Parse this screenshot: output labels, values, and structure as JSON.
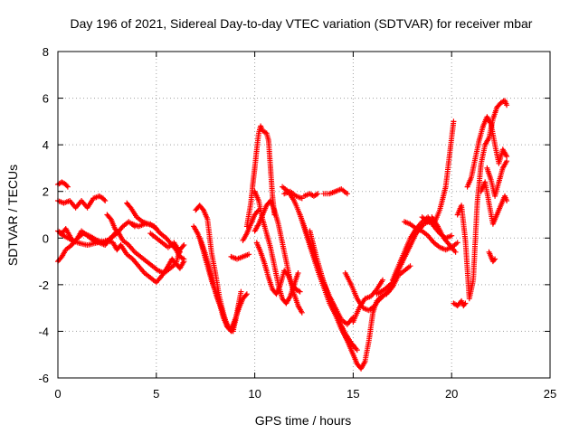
{
  "chart_data": {
    "type": "scatter",
    "title": "Day 196 of 2021, Sidereal Day-to-day VTEC variation (SDTVAR) for receiver mbar",
    "xlabel": "GPS time / hours",
    "ylabel": "SDTVAR / TECUs",
    "xlim": [
      0,
      25
    ],
    "ylim": [
      -6,
      8
    ],
    "xticks": [
      0,
      5,
      10,
      15,
      20,
      25
    ],
    "yticks": [
      -6,
      -4,
      -2,
      0,
      2,
      4,
      6,
      8
    ],
    "grid": true,
    "marker": "+",
    "color": "#ff0000",
    "series": [
      {
        "name": "arc1",
        "x": [
          0.0,
          0.2,
          0.4,
          0.5
        ],
        "y": [
          2.3,
          2.4,
          2.3,
          2.2
        ]
      },
      {
        "name": "arc2",
        "x": [
          0.0,
          0.3,
          0.6,
          0.9,
          1.2,
          1.5,
          1.8,
          2.1,
          2.3,
          2.4
        ],
        "y": [
          1.6,
          1.5,
          1.6,
          1.3,
          1.6,
          1.3,
          1.7,
          1.8,
          1.7,
          1.6
        ]
      },
      {
        "name": "arc3",
        "x": [
          0.0,
          0.2,
          0.4,
          0.7,
          1.0,
          1.3,
          1.6,
          2.0,
          2.4,
          2.8,
          3.0
        ],
        "y": [
          -1.0,
          -0.8,
          -0.5,
          -0.3,
          0.0,
          0.2,
          0.1,
          -0.1,
          -0.2,
          0.1,
          0.3
        ]
      },
      {
        "name": "arc4",
        "x": [
          0.0,
          0.2,
          0.4,
          0.6,
          0.8,
          1.0,
          1.2,
          1.5,
          1.8,
          2.1,
          2.4,
          2.7,
          3.0,
          3.3,
          3.6,
          3.9
        ],
        "y": [
          0.3,
          0.2,
          0.4,
          0.1,
          -0.2,
          0.0,
          0.3,
          0.1,
          -0.1,
          -0.2,
          -0.3,
          0.0,
          0.2,
          0.5,
          0.7,
          0.5
        ]
      },
      {
        "name": "arc5",
        "x": [
          0.1,
          0.5,
          1.0,
          1.5,
          2.0,
          2.5,
          2.8,
          3.0,
          3.2,
          3.5,
          3.8,
          4.1,
          4.4,
          4.7,
          5.0,
          5.3,
          5.6,
          5.8,
          6.0,
          6.2,
          6.4
        ],
        "y": [
          0.2,
          0.0,
          -0.2,
          -0.3,
          -0.2,
          -0.1,
          -0.2,
          -0.5,
          -0.3,
          -0.7,
          -0.9,
          -1.2,
          -1.5,
          -1.7,
          -1.9,
          -1.6,
          -1.2,
          -0.9,
          -1.1,
          -0.5,
          -0.3
        ]
      },
      {
        "name": "arc6",
        "x": [
          2.5,
          2.7,
          2.9,
          3.1,
          3.3,
          3.6,
          3.9,
          4.2,
          4.5,
          4.8,
          5.1,
          5.4,
          5.7,
          6.0,
          6.2,
          6.4
        ],
        "y": [
          1.0,
          0.8,
          0.4,
          0.2,
          -0.1,
          -0.3,
          -0.6,
          -0.8,
          -1.0,
          -1.2,
          -1.4,
          -1.5,
          -1.3,
          -1.1,
          -1.3,
          -1.0
        ]
      },
      {
        "name": "arc7",
        "x": [
          3.5,
          3.7,
          4.0,
          4.3,
          4.6,
          4.9,
          5.2,
          5.5,
          5.8,
          6.0,
          6.2,
          6.4
        ],
        "y": [
          1.5,
          1.3,
          0.9,
          0.7,
          0.6,
          0.5,
          0.2,
          0.0,
          -0.3,
          -0.5,
          -0.8,
          -0.9
        ]
      },
      {
        "name": "arc8",
        "x": [
          3.8,
          4.1,
          4.4,
          4.7,
          5.0
        ],
        "y": [
          0.6,
          0.5,
          0.6,
          0.6,
          0.4
        ]
      },
      {
        "name": "arc9",
        "x": [
          4.7,
          5.0,
          5.3,
          5.6,
          5.9,
          6.2
        ],
        "y": [
          0.2,
          0.0,
          -0.2,
          -0.4,
          -0.2,
          -0.6
        ]
      },
      {
        "name": "arc10",
        "x": [
          7.0,
          7.2,
          7.4,
          7.6,
          7.8,
          8.0,
          8.2,
          8.4,
          8.6,
          8.8,
          9.0,
          9.2
        ],
        "y": [
          1.2,
          1.4,
          1.2,
          0.8,
          -0.6,
          -1.5,
          -2.5,
          -3.2,
          -3.8,
          -4.0,
          -3.6,
          -2.8
        ]
      },
      {
        "name": "arc11",
        "x": [
          6.9,
          7.1,
          7.3,
          7.5,
          7.7,
          7.9,
          8.1,
          8.3,
          8.5,
          8.7,
          8.9,
          9.1,
          9.3
        ],
        "y": [
          0.5,
          0.2,
          -0.2,
          -0.7,
          -1.3,
          -2.0,
          -2.6,
          -3.0,
          -3.5,
          -3.9,
          -4.0,
          -3.2,
          -2.3
        ]
      },
      {
        "name": "arc12",
        "x": [
          7.2,
          7.4,
          7.6,
          7.8,
          8.0,
          8.2,
          8.4,
          8.6,
          8.8,
          9.0,
          9.2,
          9.4,
          9.6
        ],
        "y": [
          0.0,
          -0.6,
          -1.2,
          -1.8,
          -2.3,
          -2.8,
          -3.4,
          -3.8,
          -3.9,
          -3.5,
          -3.0,
          -2.6,
          -2.4
        ]
      },
      {
        "name": "arc13",
        "x": [
          8.8,
          9.1,
          9.4,
          9.7
        ],
        "y": [
          -0.8,
          -0.9,
          -0.8,
          -0.7
        ]
      },
      {
        "name": "arc14",
        "x": [
          9.4,
          9.6,
          9.8,
          10.0,
          10.2
        ],
        "y": [
          -0.1,
          0.2,
          0.6,
          1.0,
          1.2
        ]
      },
      {
        "name": "arc15",
        "x": [
          9.6,
          9.8,
          9.9,
          10.0,
          10.1,
          10.2,
          10.3,
          10.4,
          10.6,
          10.7,
          10.8,
          10.9,
          11.0
        ],
        "y": [
          0.5,
          1.5,
          2.3,
          3.0,
          3.8,
          4.5,
          4.8,
          4.6,
          4.5,
          4.2,
          3.0,
          1.8,
          1.0
        ]
      },
      {
        "name": "arc16",
        "x": [
          10.0,
          10.2,
          10.4,
          10.6,
          10.8,
          11.0,
          11.2,
          11.4,
          11.6,
          11.8,
          12.0,
          12.2
        ],
        "y": [
          2.0,
          1.6,
          0.8,
          0.2,
          -0.4,
          -1.2,
          -2.0,
          -2.6,
          -2.8,
          -2.5,
          -2.0,
          -1.5
        ]
      },
      {
        "name": "arc17",
        "x": [
          10.0,
          10.2,
          10.4,
          10.6,
          10.8,
          11.0,
          11.2,
          11.4,
          11.6,
          11.8,
          12.0,
          12.2,
          12.4
        ],
        "y": [
          0.3,
          0.6,
          1.0,
          1.4,
          1.6,
          1.2,
          0.6,
          -0.2,
          -1.0,
          -1.8,
          -2.4,
          -2.9,
          -3.2
        ]
      },
      {
        "name": "arc18",
        "x": [
          10.1,
          10.3,
          10.5,
          10.7,
          10.9,
          11.1,
          11.3,
          11.5,
          11.7,
          11.9,
          12.1,
          12.3
        ],
        "y": [
          -0.2,
          -0.6,
          -1.1,
          -1.7,
          -2.2,
          -2.4,
          -2.0,
          -1.4,
          -1.6,
          -2.0,
          -2.2,
          -2.3
        ]
      },
      {
        "name": "arc19",
        "x": [
          11.4,
          11.7,
          12.0,
          12.3,
          12.6,
          12.9,
          13.2,
          13.5,
          13.8,
          14.1,
          14.4,
          14.7,
          15.0
        ],
        "y": [
          2.2,
          2.0,
          1.6,
          1.0,
          0.3,
          -0.5,
          -1.2,
          -1.9,
          -2.5,
          -3.0,
          -3.5,
          -3.7,
          -3.4
        ]
      },
      {
        "name": "arc20",
        "x": [
          11.5,
          11.8,
          12.1,
          12.4
        ],
        "y": [
          1.9,
          2.0,
          1.8,
          1.7
        ]
      },
      {
        "name": "arc21",
        "x": [
          12.3,
          12.6,
          12.9,
          13.2,
          13.5,
          13.8,
          14.1,
          14.4,
          14.7,
          15.0
        ],
        "y": [
          1.0,
          0.2,
          -0.6,
          -1.4,
          -2.1,
          -2.8,
          -3.3,
          -3.9,
          -4.4,
          -4.6
        ]
      },
      {
        "name": "arc22",
        "x": [
          12.8,
          13.1,
          13.4,
          13.7,
          14.0,
          14.3,
          14.6,
          14.9,
          15.2
        ],
        "y": [
          0.3,
          -0.7,
          -1.6,
          -2.4,
          -3.0,
          -3.6,
          -4.1,
          -4.5,
          -4.8
        ]
      },
      {
        "name": "arc23",
        "x": [
          12.5,
          12.8,
          13.0,
          13.2
        ],
        "y": [
          1.8,
          1.9,
          1.8,
          1.9
        ]
      },
      {
        "name": "arc24",
        "x": [
          13.5,
          13.8,
          14.1,
          14.4,
          14.7
        ],
        "y": [
          1.9,
          1.9,
          2.0,
          2.1,
          1.9
        ]
      },
      {
        "name": "arc25",
        "x": [
          14.4,
          14.6,
          14.8,
          15.0,
          15.2,
          15.4,
          15.6,
          15.8,
          16.0,
          16.2,
          16.4,
          16.6,
          16.8,
          17.0
        ],
        "y": [
          -3.8,
          -4.2,
          -4.6,
          -5.0,
          -5.4,
          -5.6,
          -5.3,
          -4.4,
          -3.2,
          -2.7,
          -2.6,
          -2.4,
          -2.3,
          -2.0
        ]
      },
      {
        "name": "arc26",
        "x": [
          14.6,
          14.9,
          15.2,
          15.5,
          15.8,
          16.1,
          16.4,
          16.7,
          17.0,
          17.3,
          17.6,
          17.9
        ],
        "y": [
          -1.5,
          -2.0,
          -2.6,
          -3.0,
          -3.1,
          -2.9,
          -2.5,
          -2.4,
          -2.1,
          -1.6,
          -1.4,
          -1.2
        ]
      },
      {
        "name": "arc27",
        "x": [
          15.0,
          15.3,
          15.6,
          15.9,
          16.2,
          16.5
        ],
        "y": [
          -3.6,
          -3.0,
          -2.6,
          -2.5,
          -2.2,
          -1.8
        ]
      },
      {
        "name": "arc28",
        "x": [
          17.0,
          17.3,
          17.6,
          17.9,
          18.2,
          18.5,
          18.8,
          19.1,
          19.4,
          19.7,
          20.0
        ],
        "y": [
          -1.8,
          -1.2,
          -0.6,
          0.0,
          0.4,
          0.7,
          0.9,
          0.5,
          0.2,
          0.0,
          0.1
        ]
      },
      {
        "name": "arc29",
        "x": [
          16.2,
          16.6,
          17.0,
          17.4,
          17.8,
          18.2,
          18.6,
          19.0
        ],
        "y": [
          -2.4,
          -2.2,
          -1.9,
          -1.2,
          -0.5,
          0.2,
          0.6,
          0.8
        ]
      },
      {
        "name": "arc30",
        "x": [
          17.6,
          17.9,
          18.2,
          18.5,
          18.8,
          19.1,
          19.4,
          19.7,
          20.0,
          20.3
        ],
        "y": [
          0.7,
          0.6,
          0.4,
          0.3,
          0.1,
          -0.2,
          -0.4,
          -0.5,
          -0.4,
          -0.2
        ]
      },
      {
        "name": "arc31",
        "x": [
          18.5,
          18.8,
          19.1,
          19.4,
          19.7,
          19.9,
          20.1
        ],
        "y": [
          0.9,
          0.7,
          0.6,
          1.2,
          2.2,
          3.6,
          5.0
        ]
      },
      {
        "name": "arc32",
        "x": [
          19.0,
          19.3,
          19.6,
          19.9,
          20.2
        ],
        "y": [
          0.9,
          0.5,
          0.0,
          -0.3,
          -0.6
        ]
      },
      {
        "name": "arc33",
        "x": [
          20.1,
          20.3,
          20.5,
          20.6,
          20.7
        ],
        "y": [
          -2.8,
          -2.9,
          -2.7,
          -2.9,
          -2.8
        ]
      },
      {
        "name": "arc34",
        "x": [
          20.3,
          20.5,
          20.7,
          20.9,
          21.1,
          21.3,
          21.5,
          21.7,
          21.9,
          22.1,
          22.3,
          22.5,
          22.7,
          22.8
        ],
        "y": [
          1.0,
          1.4,
          -0.1,
          -2.6,
          -1.8,
          1.5,
          3.2,
          4.0,
          4.3,
          5.1,
          5.6,
          5.8,
          5.9,
          5.7
        ]
      },
      {
        "name": "arc35",
        "x": [
          20.8,
          21.0,
          21.2,
          21.4,
          21.6,
          21.8,
          22.0,
          22.2,
          22.4,
          22.6,
          22.8
        ],
        "y": [
          2.2,
          2.6,
          3.4,
          4.2,
          4.8,
          5.2,
          4.9,
          4.0,
          3.2,
          3.8,
          3.5
        ]
      },
      {
        "name": "arc36",
        "x": [
          21.5,
          21.7,
          21.9,
          22.1,
          22.3,
          22.5,
          22.7,
          22.8
        ],
        "y": [
          2.0,
          2.4,
          1.5,
          0.6,
          1.0,
          1.4,
          1.8,
          1.6
        ]
      },
      {
        "name": "arc37",
        "x": [
          21.8,
          22.0,
          22.2,
          22.4,
          22.6,
          22.8
        ],
        "y": [
          3.0,
          2.5,
          1.8,
          2.4,
          3.0,
          3.3
        ]
      },
      {
        "name": "arc38",
        "x": [
          21.9,
          22.0,
          22.1,
          22.2
        ],
        "y": [
          -0.6,
          -0.8,
          -1.0,
          -0.9
        ]
      }
    ]
  }
}
